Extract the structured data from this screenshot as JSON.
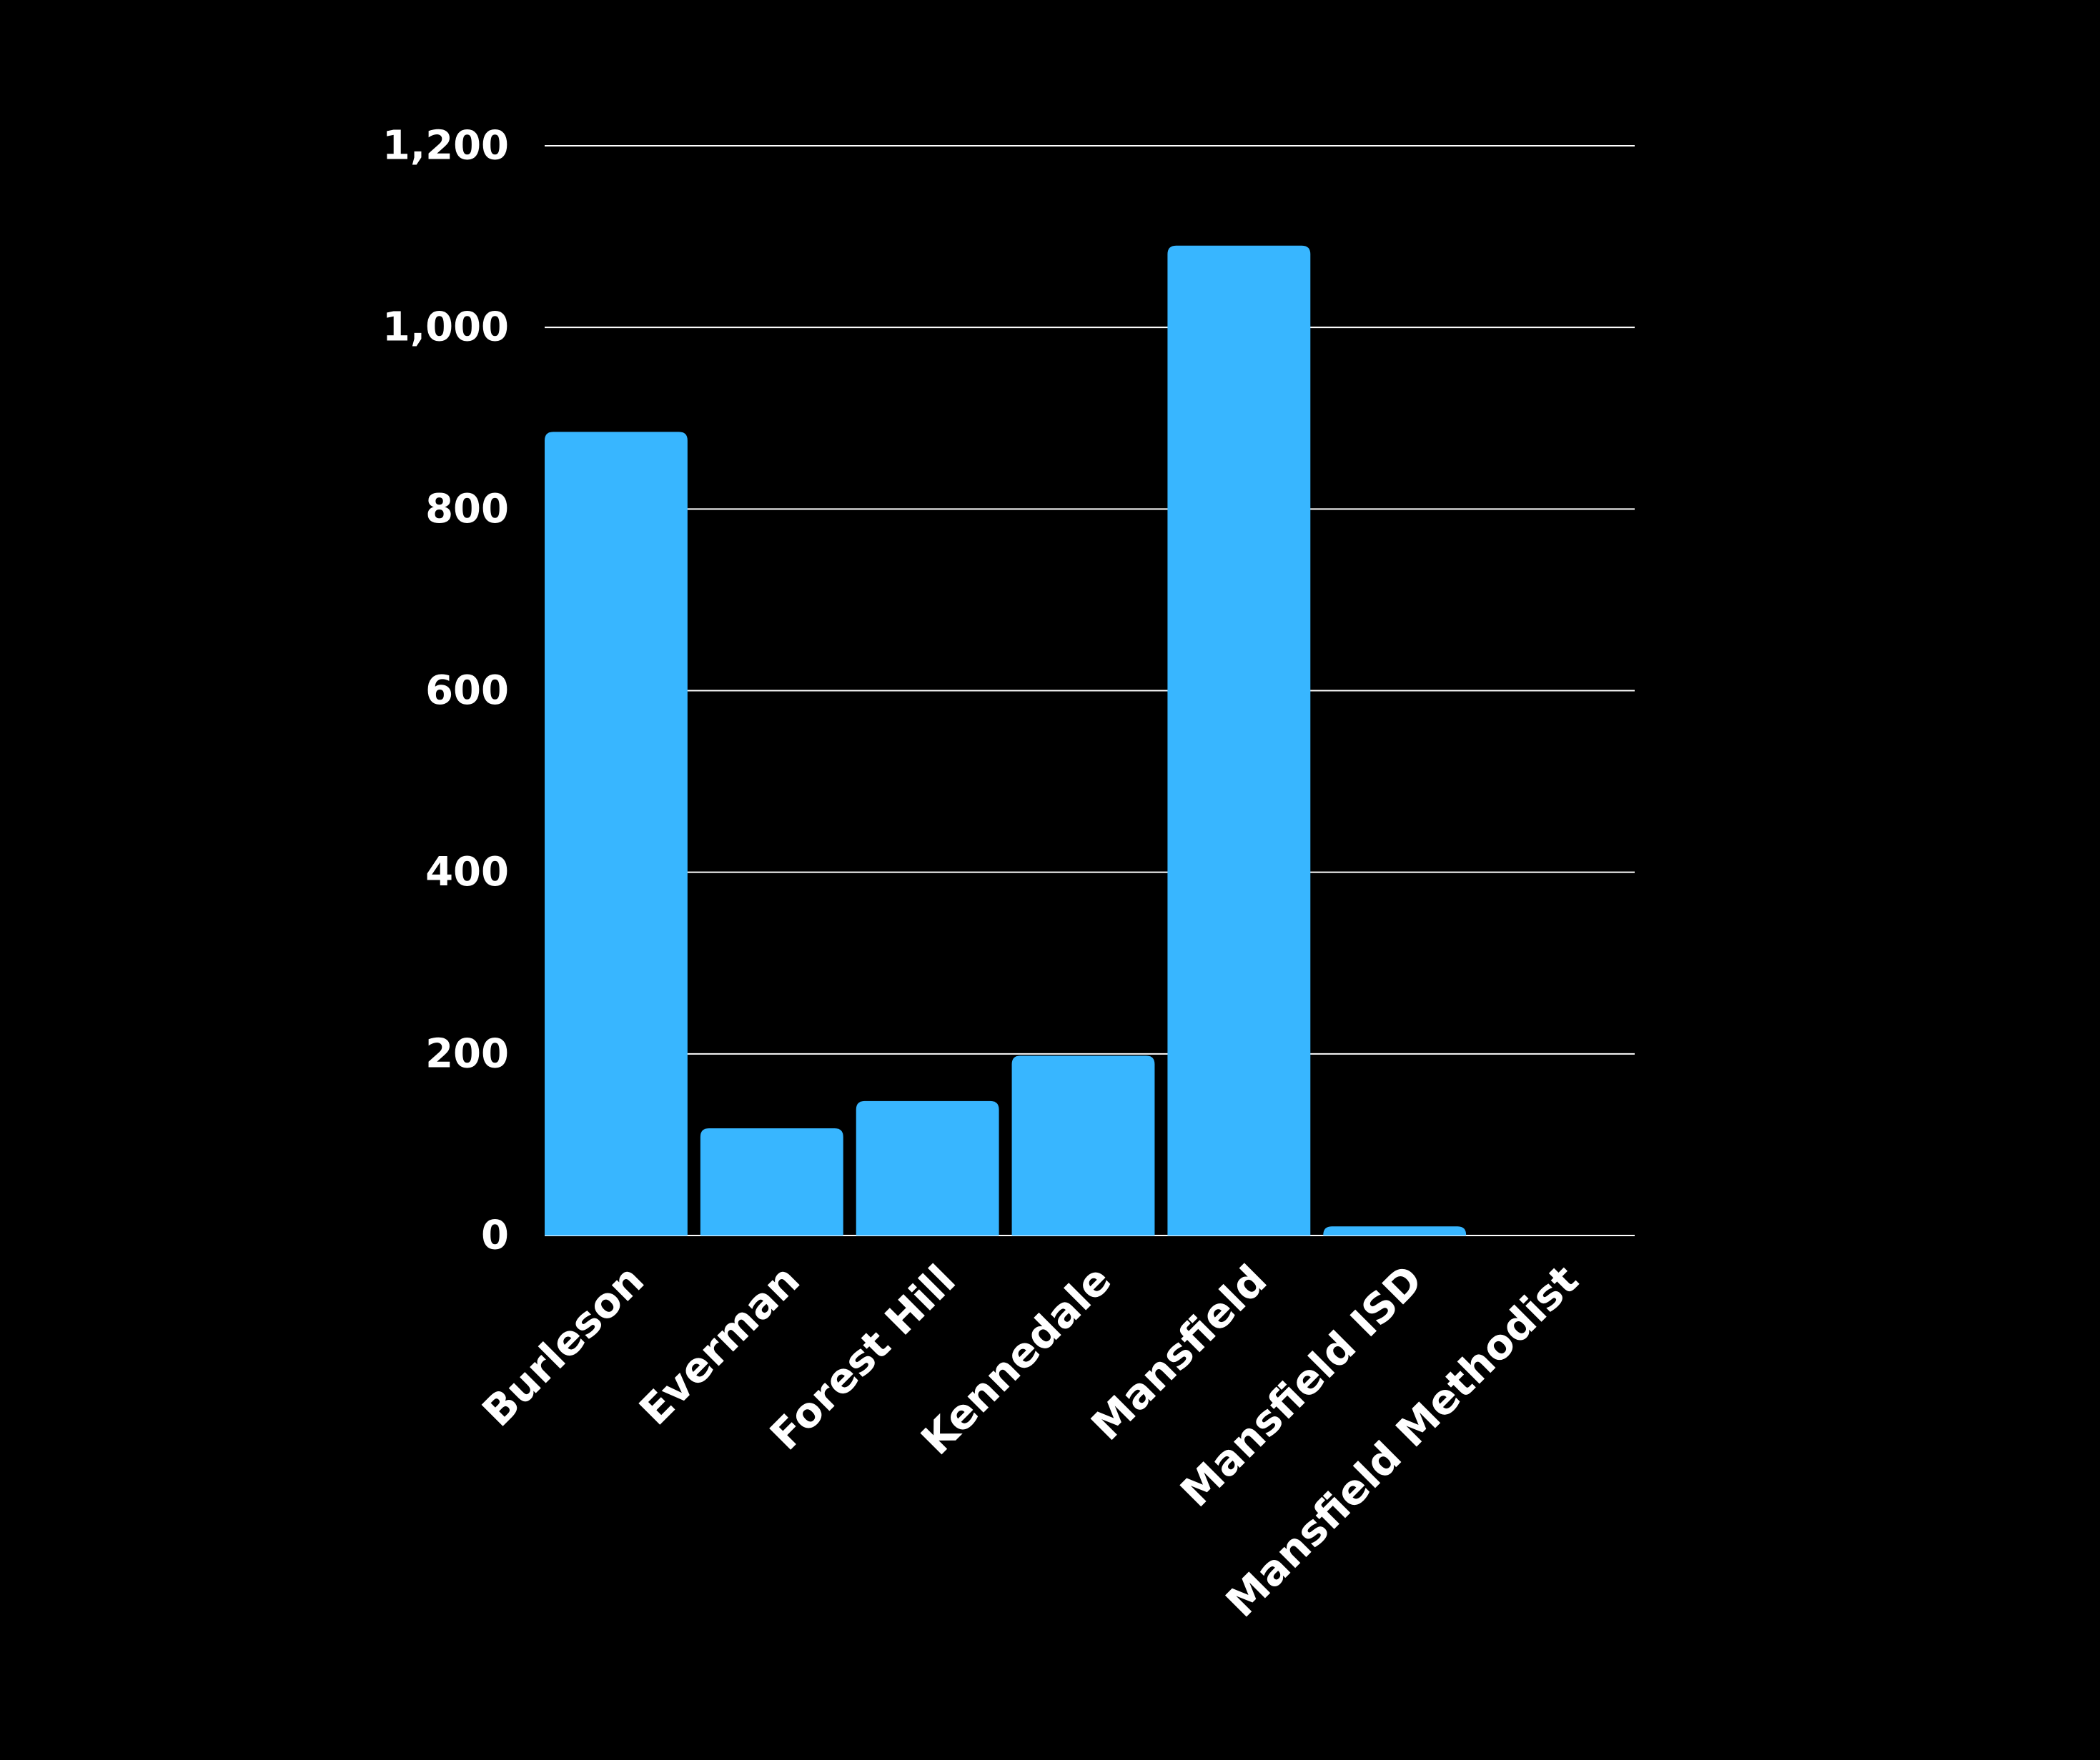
{
  "chart_data": {
    "type": "bar",
    "title": "",
    "xlabel": "",
    "ylabel": "",
    "categories": [
      "Burleson",
      "Everman",
      "Forest Hill",
      "Kennedale",
      "Mansfield",
      "Mansfield ISD",
      "Mansfield Methodist"
    ],
    "values": [
      885,
      118,
      148,
      198,
      1090,
      10,
      0
    ],
    "ylim": [
      0,
      1200
    ],
    "yticks": [
      0,
      200,
      400,
      600,
      800,
      1000,
      1200
    ],
    "ytick_labels": [
      "0",
      "200",
      "400",
      "600",
      "800",
      "1,000",
      "1,200"
    ],
    "grid": true,
    "legend": "none",
    "colors": {
      "background": "#000000",
      "bar": "#38b6ff",
      "grid": "#ffffff",
      "text": "#ffffff"
    }
  }
}
